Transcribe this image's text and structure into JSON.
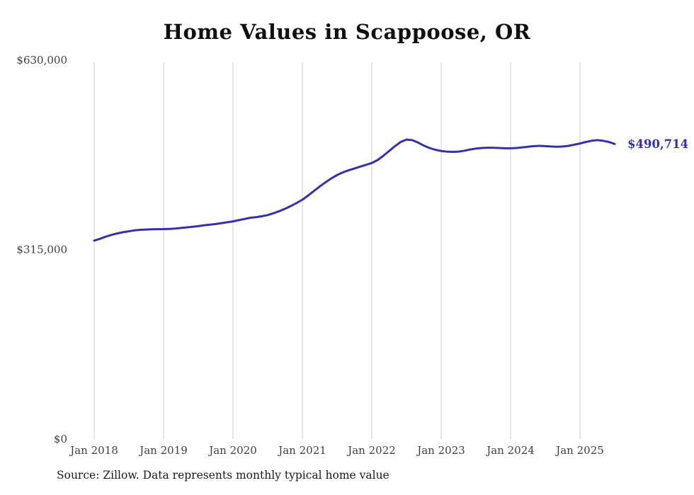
{
  "chart_data": {
    "type": "line",
    "title": "Home Values in Scappoose, OR",
    "source": "Source: Zillow. Data represents monthly typical home value",
    "legend": "none",
    "grid": "vertical-only",
    "line_color": "#3531a8",
    "grid_color": "#cccccc",
    "tick_color": "#3f3f3f",
    "ylim": [
      0,
      630000
    ],
    "yticks": [
      {
        "value": 0,
        "label": "$0"
      },
      {
        "value": 315000,
        "label": "$315,000"
      },
      {
        "value": 630000,
        "label": "$630,000"
      }
    ],
    "xticks": [
      "Jan 2018",
      "Jan 2019",
      "Jan 2020",
      "Jan 2021",
      "Jan 2022",
      "Jan 2023",
      "Jan 2024",
      "Jan 2025"
    ],
    "end_label": "$490,714",
    "end_value": 490714,
    "series": [
      {
        "name": "Typical home value",
        "start": "Jan 2018",
        "frequency": "monthly",
        "values": [
          330000,
          333000,
          336500,
          339500,
          342000,
          344000,
          345500,
          347000,
          348000,
          348500,
          348800,
          349000,
          349200,
          349500,
          350000,
          351000,
          352000,
          353000,
          354000,
          355500,
          356500,
          357500,
          359000,
          360500,
          362000,
          364000,
          366000,
          368000,
          369000,
          370500,
          372500,
          375500,
          379000,
          383000,
          387500,
          392500,
          398000,
          405000,
          412500,
          420000,
          427000,
          433500,
          439000,
          443500,
          447000,
          450000,
          453000,
          456000,
          459000,
          464000,
          471000,
          479000,
          487000,
          494000,
          498000,
          497000,
          493000,
          488000,
          484000,
          481000,
          479000,
          478000,
          477500,
          478000,
          479500,
          481500,
          483000,
          484000,
          484500,
          484500,
          484000,
          483500,
          483500,
          484000,
          485000,
          486000,
          487000,
          487500,
          487000,
          486500,
          486000,
          486500,
          487500,
          489500,
          491500,
          494000,
          496000,
          497000,
          496000,
          494000,
          490714
        ]
      }
    ]
  }
}
